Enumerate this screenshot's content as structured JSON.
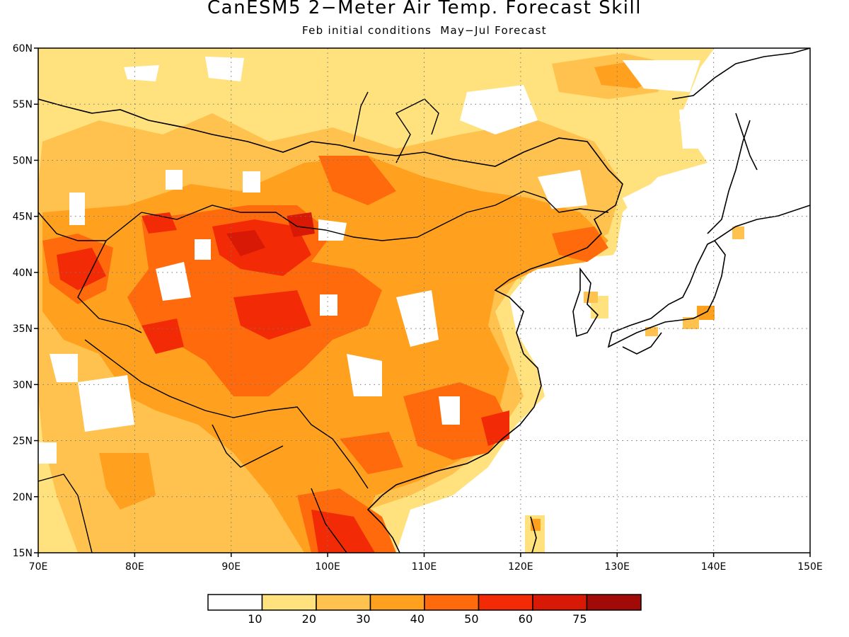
{
  "title": "CanESM5 2−Meter Air Temp. Forecast Skill",
  "subtitle": "Feb initial conditions  May−Jul Forecast",
  "map": {
    "lon_range": [
      70,
      150
    ],
    "lat_range": [
      15,
      60
    ],
    "x_ticks": [
      "70E",
      "80E",
      "90E",
      "100E",
      "110E",
      "120E",
      "130E",
      "140E",
      "150E"
    ],
    "y_ticks": [
      "15N",
      "20N",
      "25N",
      "30N",
      "35N",
      "40N",
      "45N",
      "50N",
      "55N",
      "60N"
    ],
    "grid": "dotted"
  },
  "colorbar": {
    "colors": [
      "#ffffff",
      "#ffe27d",
      "#ffc24f",
      "#ffa11f",
      "#ff6b0c",
      "#f22b06",
      "#d81905",
      "#a10a08"
    ],
    "labels": [
      "10",
      "20",
      "30",
      "40",
      "50",
      "60",
      "75"
    ]
  }
}
